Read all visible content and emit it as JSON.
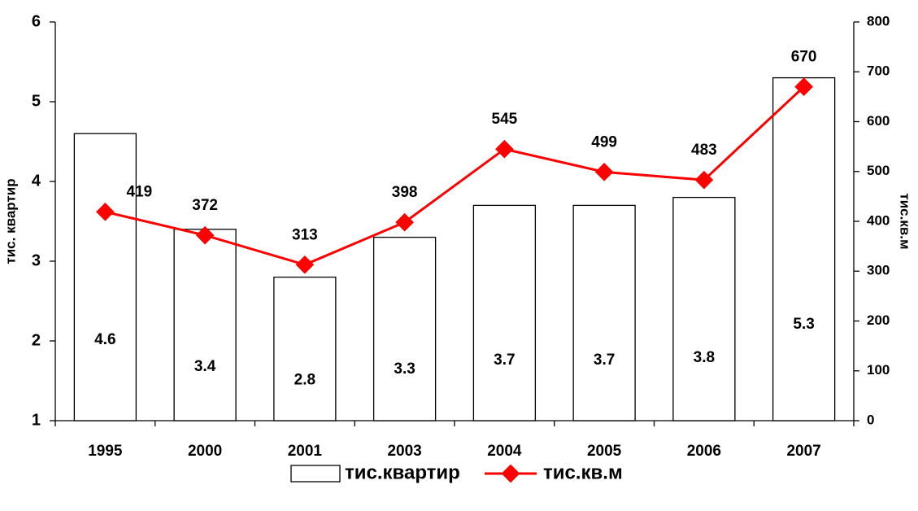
{
  "chart_data": {
    "type": "bar",
    "categories": [
      "1995",
      "2000",
      "2001",
      "2003",
      "2004",
      "2005",
      "2006",
      "2007"
    ],
    "series": [
      {
        "name": "тис.квартир",
        "color": "#ffffff",
        "values": [
          4.6,
          3.4,
          2.8,
          3.3,
          3.7,
          3.7,
          3.8,
          5.3
        ]
      },
      {
        "name": "тис.кв.м",
        "type": "line",
        "axis": "y2",
        "color": "#ff0000",
        "values": [
          419,
          372,
          313,
          398,
          545,
          499,
          483,
          670
        ]
      }
    ],
    "ylabel": "тис. квартир",
    "y2label": "тис.кв.м",
    "ylim": [
      1,
      6
    ],
    "yticks": [
      1,
      2,
      3,
      4,
      5,
      6
    ],
    "y2lim": [
      0,
      800
    ],
    "y2ticks": [
      0,
      100,
      200,
      300,
      400,
      500,
      600,
      700,
      800
    ],
    "legend": "bottom"
  }
}
